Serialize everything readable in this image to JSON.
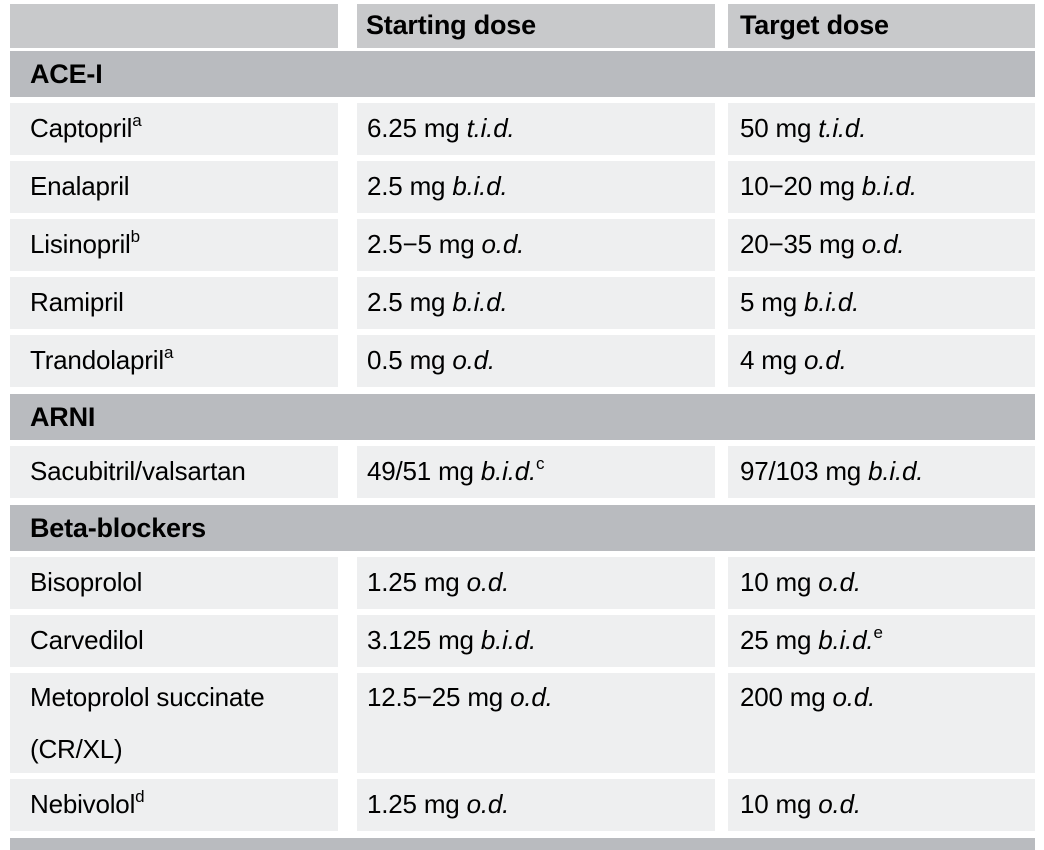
{
  "colors": {
    "header_bg": "#c8c9cb",
    "section_bg": "#b9bbbf",
    "row_bg": "#eeeff0",
    "gap": "#ffffff",
    "text": "#000000"
  },
  "table": {
    "columns": [
      "",
      "Starting dose",
      "Target dose"
    ],
    "sections": [
      {
        "label": "ACE-I",
        "rows": [
          {
            "drug": "Captopril",
            "drug_sup": "a",
            "drug_line2": "",
            "start_dose": "6.25 mg",
            "start_freq": "t.i.d.",
            "start_sup": "",
            "target_dose": "50 mg",
            "target_freq": "t.i.d.",
            "target_sup": ""
          },
          {
            "drug": "Enalapril",
            "drug_sup": "",
            "drug_line2": "",
            "start_dose": "2.5 mg",
            "start_freq": "b.i.d.",
            "start_sup": "",
            "target_dose": "10−20 mg",
            "target_freq": "b.i.d.",
            "target_sup": ""
          },
          {
            "drug": "Lisinopril",
            "drug_sup": "b",
            "drug_line2": "",
            "start_dose": "2.5−5 mg",
            "start_freq": "o.d.",
            "start_sup": "",
            "target_dose": "20−35 mg",
            "target_freq": "o.d.",
            "target_sup": ""
          },
          {
            "drug": "Ramipril",
            "drug_sup": "",
            "drug_line2": "",
            "start_dose": "2.5 mg",
            "start_freq": "b.i.d.",
            "start_sup": "",
            "target_dose": "5 mg",
            "target_freq": "b.i.d.",
            "target_sup": ""
          },
          {
            "drug": "Trandolapril",
            "drug_sup": "a",
            "drug_line2": "",
            "start_dose": "0.5 mg",
            "start_freq": "o.d.",
            "start_sup": "",
            "target_dose": "4 mg",
            "target_freq": "o.d.",
            "target_sup": ""
          }
        ]
      },
      {
        "label": "ARNI",
        "rows": [
          {
            "drug": "Sacubitril/valsartan",
            "drug_sup": "",
            "drug_line2": "",
            "start_dose": "49/51 mg",
            "start_freq": "b.i.d.",
            "start_sup": "c",
            "target_dose": "97/103 mg",
            "target_freq": "b.i.d.",
            "target_sup": ""
          }
        ]
      },
      {
        "label": "Beta-blockers",
        "rows": [
          {
            "drug": "Bisoprolol",
            "drug_sup": "",
            "drug_line2": "",
            "start_dose": "1.25 mg",
            "start_freq": "o.d.",
            "start_sup": "",
            "target_dose": "10 mg",
            "target_freq": "o.d.",
            "target_sup": ""
          },
          {
            "drug": "Carvedilol",
            "drug_sup": "",
            "drug_line2": "",
            "start_dose": "3.125 mg",
            "start_freq": "b.i.d.",
            "start_sup": "",
            "target_dose": "25 mg",
            "target_freq": "b.i.d.",
            "target_sup": "e"
          },
          {
            "drug": "Metoprolol succinate",
            "drug_sup": "",
            "drug_line2": "(CR/XL)",
            "tall": true,
            "start_dose": "12.5−25 mg",
            "start_freq": "o.d.",
            "start_sup": "",
            "target_dose": "200 mg",
            "target_freq": "o.d.",
            "target_sup": ""
          },
          {
            "drug": "Nebivolol",
            "drug_sup": "d",
            "drug_line2": "",
            "start_dose": "1.25 mg",
            "start_freq": "o.d.",
            "start_sup": "",
            "target_dose": "10 mg",
            "target_freq": "o.d.",
            "target_sup": ""
          }
        ]
      }
    ]
  }
}
